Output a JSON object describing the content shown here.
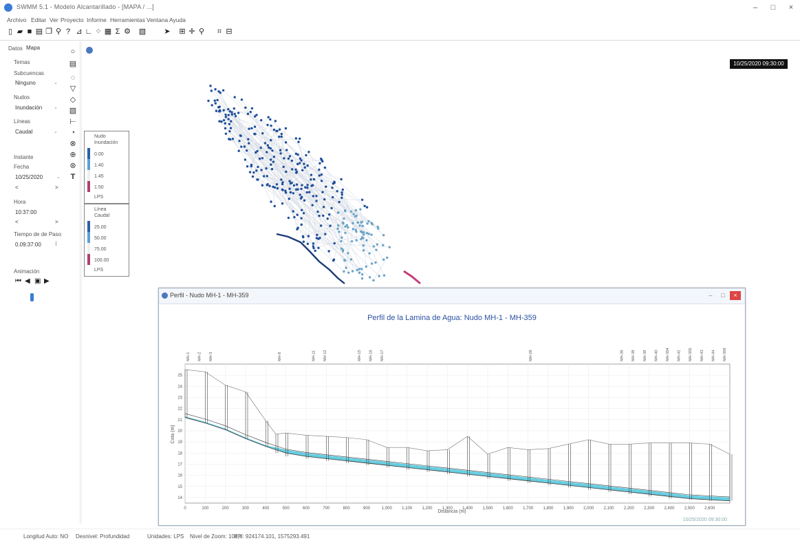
{
  "window": {
    "title": "SWMM 5.1 - Modelo Alcantarillado - [MAPA / ...]",
    "minimize": "–",
    "maximize": "□",
    "close": "×"
  },
  "menu": [
    "Archivo",
    "Editar",
    "Ver",
    "Proyecto",
    "Informe",
    "Herramientas",
    "Ventana",
    "Ayuda"
  ],
  "toolbar_icons": [
    "new-file-icon",
    "open-folder-icon",
    "save-icon",
    "print-icon",
    "copy-icon",
    "find-icon",
    "query-icon",
    "profile-plot-icon",
    "time-series-icon",
    "scatter-plot-icon",
    "table-icon",
    "statistics-icon",
    "options-icon",
    "map-icon",
    "select-arrow-icon",
    "zoom-extent-icon",
    "pan-icon",
    "zoom-icon",
    "vertex-icon",
    "full-extent-icon"
  ],
  "left_panel": {
    "tabs": [
      "Datos",
      "Mapa"
    ],
    "themes_label": "Temas",
    "subcatch_label": "Subcuencas",
    "subcatch_value": "Ninguno",
    "nodes_label": "Nudos",
    "nodes_value": "Inundación",
    "links_label": "Líneas",
    "links_value": "Caudal",
    "time_label": "Instante",
    "date_label": "Fecha",
    "date_value": "10/25/2020",
    "hour_label": "Hora",
    "hour_value": "10:37:00",
    "elapsed_label": "Tiempo de de Paso",
    "elapsed_value": "0.09:37:00",
    "animation_label": "Animación",
    "prev_nav": "<",
    "next_nav": ">"
  },
  "vertical_toolbar_icons": [
    "raingage-icon",
    "subcatchment-icon",
    "junction-icon",
    "outfall-icon",
    "divider-icon",
    "storage-icon",
    "conduit-icon",
    "pump-icon",
    "orifice-icon",
    "weir-icon",
    "outlet-icon",
    "label-icon"
  ],
  "map": {
    "timestamp": "10/25/2020 09:30:00",
    "legend_nodes": {
      "title": "Nudo",
      "subtitle": "Inundación",
      "values": [
        "0.00",
        "1.40",
        "1.45",
        "1.50"
      ],
      "unit": "LPS"
    },
    "legend_links": {
      "title": "Línea",
      "subtitle": "Caudal",
      "values": [
        "25.00",
        "50.00",
        "75.00",
        "100.00"
      ],
      "unit": "LPS"
    }
  },
  "profile": {
    "window_title": "Perfil - Nudo MH-1 - MH-359",
    "minimize": "–",
    "maximize": "□",
    "close": "×",
    "footer": "10/25/2020 09:30:00"
  },
  "chart_data": {
    "type": "line",
    "title": "Perfil de la Lamina de Agua:  Nudo MH-1 - MH-359",
    "xlabel": "Distancia (m)",
    "ylabel": "Cota (m)",
    "xlim": [
      0,
      2700
    ],
    "ylim": [
      13.5,
      26
    ],
    "x_ticks": [
      0,
      100,
      200,
      300,
      400,
      500,
      600,
      700,
      800,
      900,
      1000,
      1100,
      1200,
      1300,
      1400,
      1500,
      1600,
      1700,
      1800,
      1900,
      2000,
      2100,
      2200,
      2300,
      2400,
      2500,
      2600
    ],
    "x_tick_labels": [
      "0",
      "100",
      "200",
      "300",
      "400",
      "500",
      "600",
      "700",
      "800",
      "900",
      "1,000",
      "1,100",
      "1,200",
      "1,300",
      "1,400",
      "1,500",
      "1,600",
      "1,700",
      "1,800",
      "1,900",
      "2,000",
      "2,100",
      "2,200",
      "2,300",
      "2,400",
      "2,500",
      "2,600"
    ],
    "y_ticks": [
      14,
      15,
      16,
      17,
      18,
      19,
      20,
      21,
      22,
      23,
      24,
      25
    ],
    "y_tick_labels": [
      "14",
      "15",
      "16",
      "17",
      "18",
      "19",
      "20",
      "21",
      "22",
      "23",
      "24",
      "25"
    ],
    "node_labels": [
      "MH-1",
      "MH-2",
      "MH-3",
      "",
      "",
      "",
      "",
      "",
      "MH-8",
      "",
      "",
      "MH-11",
      "MH-12",
      "",
      "",
      "MH-15",
      "MH-16",
      "MH-17",
      "",
      "",
      "",
      "",
      "",
      "",
      "",
      "",
      "",
      "",
      "",
      "",
      "MH-28",
      "",
      "",
      "",
      "",
      "",
      "",
      "",
      "MH-36",
      "MH-38",
      "MH-39",
      "MH-40",
      "MH-354",
      "MH-42",
      "MH-355",
      "MH-43",
      "MH-44",
      "MH-359"
    ],
    "series": [
      {
        "name": "Ground",
        "x": [
          0,
          100,
          200,
          300,
          400,
          450,
          500,
          600,
          700,
          800,
          900,
          1000,
          1100,
          1200,
          1300,
          1400,
          1500,
          1600,
          1700,
          1800,
          1900,
          2000,
          2100,
          2200,
          2300,
          2400,
          2500,
          2600,
          2700
        ],
        "y": [
          25.5,
          25.3,
          24.1,
          23.5,
          20.9,
          19.7,
          19.8,
          19.6,
          19.5,
          19.4,
          19.2,
          18.5,
          18.5,
          18.2,
          18.3,
          19.5,
          17.9,
          18.5,
          18.3,
          18.4,
          18.8,
          19.2,
          18.8,
          18.8,
          18.9,
          18.9,
          18.9,
          18.8,
          17.9
        ]
      },
      {
        "name": "Invert",
        "x": [
          0,
          100,
          200,
          300,
          400,
          500,
          600,
          700,
          800,
          900,
          1000,
          1100,
          1200,
          1300,
          1400,
          1500,
          1600,
          1700,
          1800,
          1900,
          2000,
          2100,
          2200,
          2300,
          2400,
          2500,
          2600,
          2700
        ],
        "y": [
          21.2,
          20.7,
          20.1,
          19.3,
          18.6,
          18.0,
          17.7,
          17.5,
          17.3,
          17.1,
          16.9,
          16.7,
          16.5,
          16.3,
          16.1,
          15.9,
          15.7,
          15.5,
          15.3,
          15.1,
          14.9,
          14.7,
          14.5,
          14.3,
          14.1,
          13.9,
          13.8,
          13.7
        ]
      },
      {
        "name": "Water",
        "x": [
          0,
          100,
          200,
          300,
          400,
          500,
          600,
          700,
          800,
          900,
          1000,
          1100,
          1200,
          1300,
          1400,
          1500,
          1600,
          1700,
          1800,
          1900,
          2000,
          2100,
          2200,
          2300,
          2400,
          2500,
          2600,
          2700
        ],
        "y": [
          21.3,
          20.8,
          20.2,
          19.4,
          18.7,
          18.3,
          18.0,
          17.8,
          17.6,
          17.4,
          17.2,
          17.0,
          16.8,
          16.6,
          16.4,
          16.2,
          16.0,
          15.8,
          15.6,
          15.4,
          15.2,
          15.0,
          14.8,
          14.6,
          14.4,
          14.2,
          14.1,
          14.0
        ]
      }
    ],
    "grid": true
  },
  "statusbar": {
    "auto_length": "Longitud Auto: NO",
    "offsets": "Desnivel: Profundidad",
    "units": "Unidades: LPS",
    "zoom": "Nivel de Zoom: 100%",
    "coords": "X,Y: 924174.101, 1575293.491"
  }
}
